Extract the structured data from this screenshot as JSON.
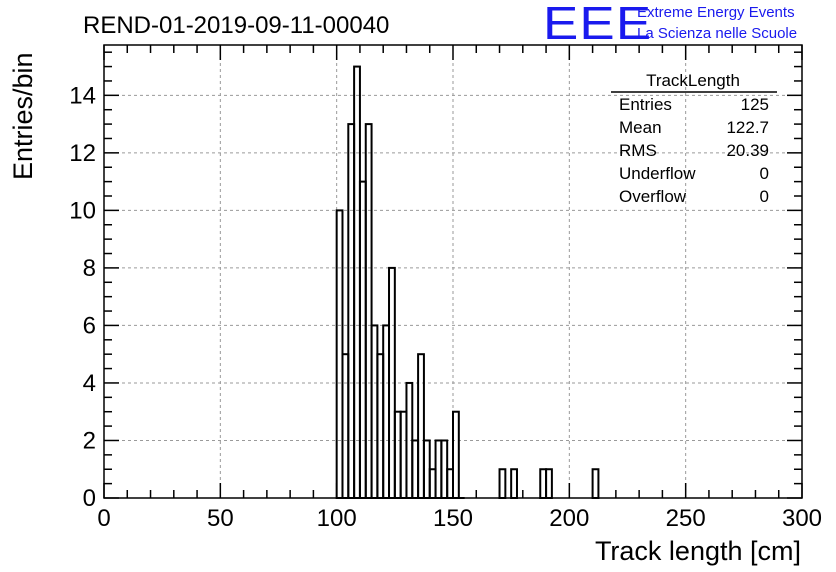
{
  "header": {
    "run_title": "REND-01-2019-09-11-00040",
    "logo_text": "EEE",
    "logo_line1": "Extreme Energy Events",
    "logo_line2": "La Scienza nelle Scuole"
  },
  "stats": {
    "name": "TrackLength",
    "rows": [
      {
        "label": "Entries",
        "value": "125"
      },
      {
        "label": "Mean",
        "value": "122.7"
      },
      {
        "label": "RMS",
        "value": "20.39"
      },
      {
        "label": "Underflow",
        "value": "0"
      },
      {
        "label": "Overflow",
        "value": "0"
      }
    ]
  },
  "colors": {
    "line": "#000000",
    "grid": "#9a9a9a",
    "logo": "#1a1aee"
  },
  "chart_data": {
    "type": "bar",
    "style": "step-histogram",
    "title": "",
    "xlabel": "Track length [cm]",
    "ylabel": "Entries/bin",
    "xlim": [
      0,
      300
    ],
    "ylim": [
      0,
      15.75
    ],
    "bin_width": 5,
    "grid": true,
    "legend": "top-right",
    "x_ticks": [
      0,
      50,
      100,
      150,
      200,
      250,
      300
    ],
    "y_ticks": [
      0,
      2,
      4,
      6,
      8,
      10,
      12,
      14
    ],
    "bins": [
      {
        "x": 100,
        "count": 10
      },
      {
        "x": 102.5,
        "count": 5
      },
      {
        "x": 105,
        "count": 13
      },
      {
        "x": 107.5,
        "count": 15
      },
      {
        "x": 110,
        "count": 11
      },
      {
        "x": 112.5,
        "count": 13
      },
      {
        "x": 115,
        "count": 6
      },
      {
        "x": 117.5,
        "count": 5
      },
      {
        "x": 120,
        "count": 6
      },
      {
        "x": 122.5,
        "count": 8
      },
      {
        "x": 125,
        "count": 3
      },
      {
        "x": 127.5,
        "count": 3
      },
      {
        "x": 130,
        "count": 4
      },
      {
        "x": 132.5,
        "count": 2
      },
      {
        "x": 135,
        "count": 5
      },
      {
        "x": 137.5,
        "count": 2
      },
      {
        "x": 140,
        "count": 1
      },
      {
        "x": 142.5,
        "count": 2
      },
      {
        "x": 145,
        "count": 2
      },
      {
        "x": 147.5,
        "count": 1
      },
      {
        "x": 150,
        "count": 3
      },
      {
        "x": 152.5,
        "count": 0
      },
      {
        "x": 170,
        "count": 1
      },
      {
        "x": 175,
        "count": 1
      },
      {
        "x": 187.5,
        "count": 1
      },
      {
        "x": 190,
        "count": 1
      },
      {
        "x": 210,
        "count": 1
      }
    ]
  }
}
